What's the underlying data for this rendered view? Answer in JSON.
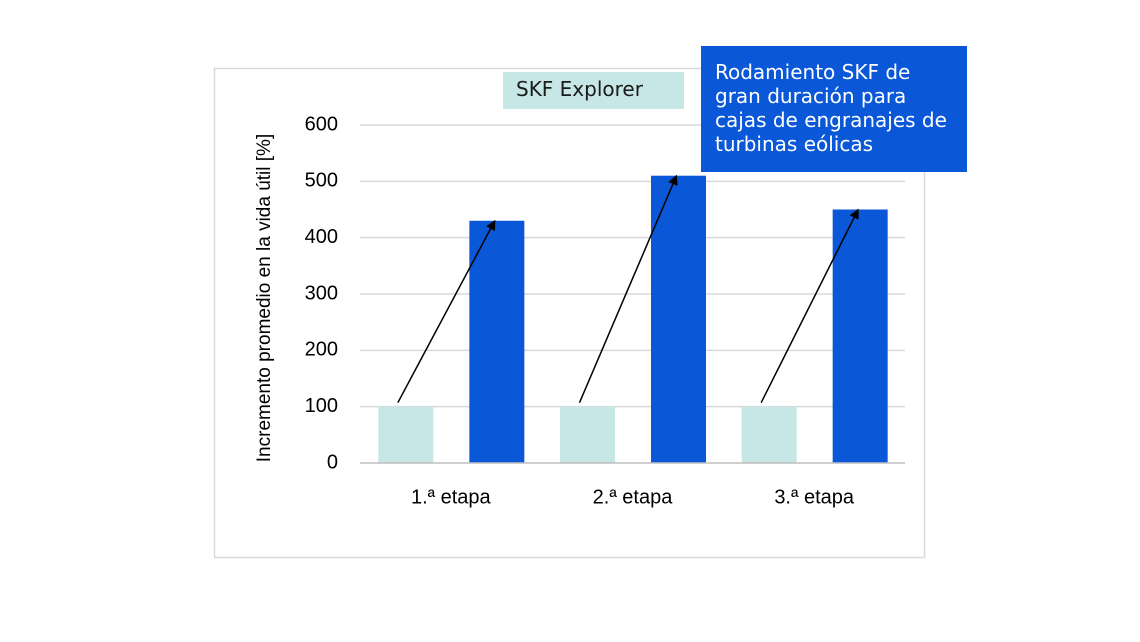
{
  "chart_data": {
    "type": "bar",
    "categories": [
      "1.ª etapa",
      "2.ª etapa",
      "3.ª etapa"
    ],
    "series": [
      {
        "name": "SKF Explorer",
        "values": [
          100,
          100,
          100
        ],
        "color": "#c6e7e6"
      },
      {
        "name": "Rodamiento SKF de gran duración para cajas de engranajes de turbinas eólicas",
        "values": [
          430,
          510,
          450
        ],
        "color": "#0a57d8"
      }
    ],
    "title": "",
    "xlabel": "",
    "ylabel": "Incremento promedio en la vida útil [%]",
    "ylim": [
      0,
      600
    ],
    "yticks": [
      "0",
      "100",
      "200",
      "300",
      "400",
      "500",
      "600"
    ],
    "grid": true,
    "legend": "top",
    "annotations": "arrows from each SKF Explorer bar to the corresponding blue bar"
  }
}
